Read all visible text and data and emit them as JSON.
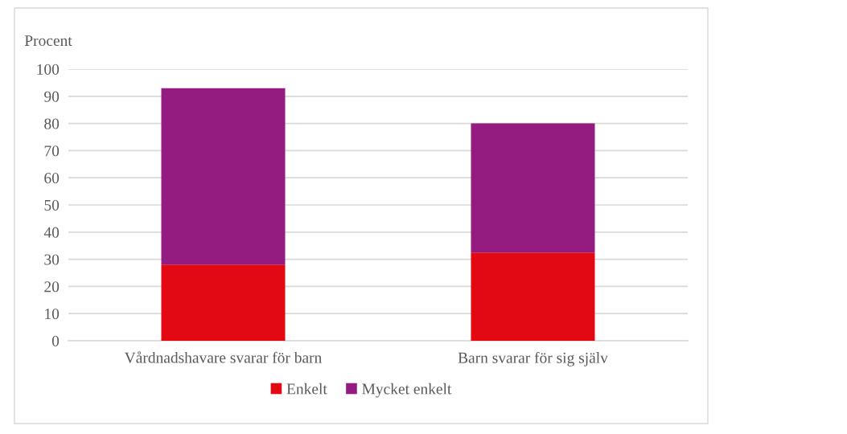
{
  "chart_data": {
    "type": "bar",
    "stacked": true,
    "ylabel": "Procent",
    "categories": [
      "Vårdnadshavare svarar för barn",
      "Barn svarar för sig själv"
    ],
    "series": [
      {
        "name": "Enkelt",
        "color": "#e30913",
        "values": [
          28,
          32.5
        ]
      },
      {
        "name": "Mycket enkelt",
        "color": "#941b80",
        "values": [
          65,
          47.5
        ]
      }
    ],
    "ylim": [
      0,
      100
    ],
    "yticks": [
      0,
      10,
      20,
      30,
      40,
      50,
      60,
      70,
      80,
      90,
      100
    ],
    "grid": "y",
    "legend": "bottom"
  }
}
